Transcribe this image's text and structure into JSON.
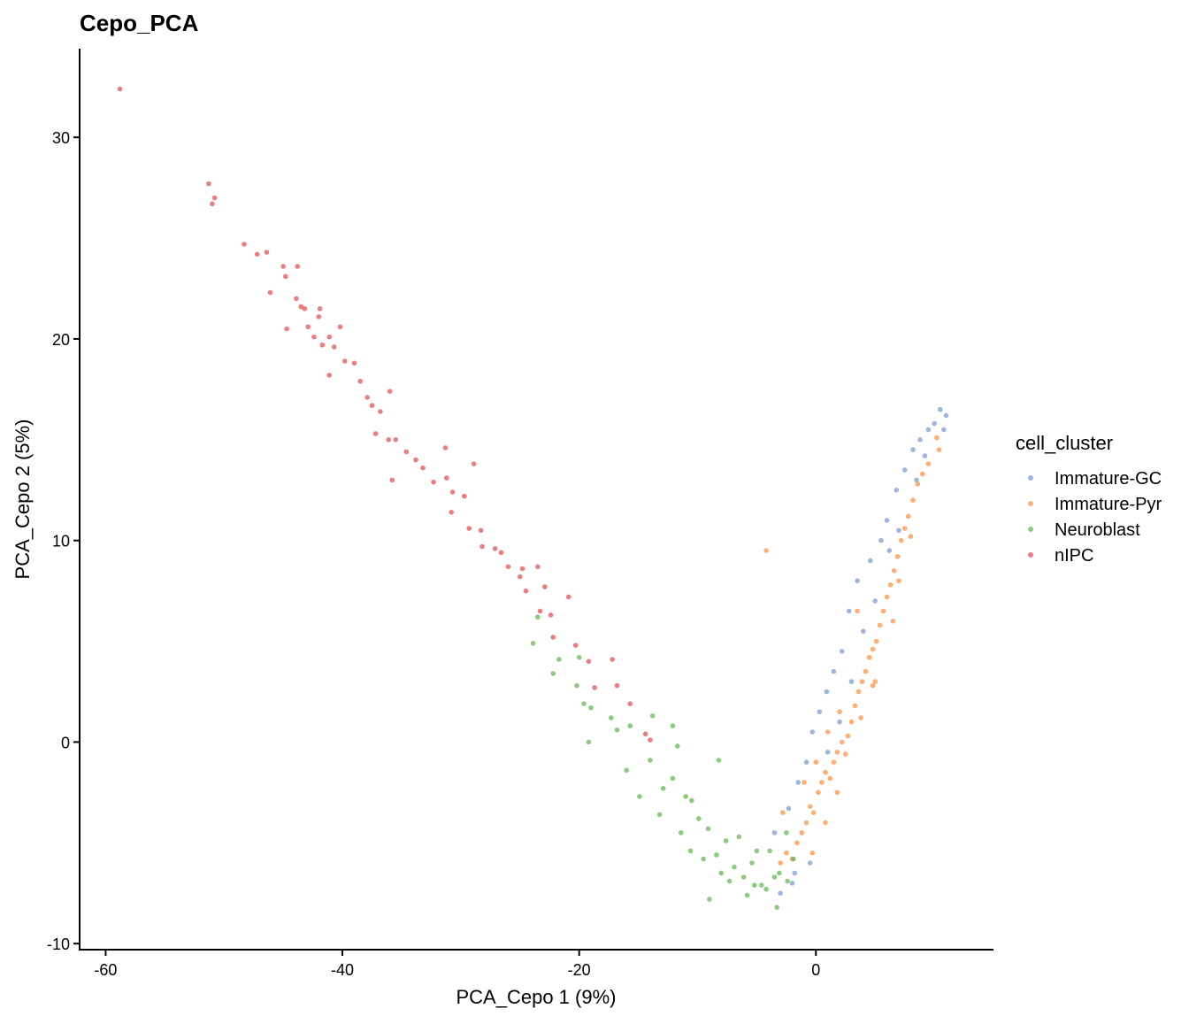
{
  "chart_data": {
    "type": "scatter",
    "title": "Cepo_PCA",
    "xlabel": "PCA_Cepo 1 (9%)",
    "ylabel": "PCA_Cepo 2 (5%)",
    "xlim": [
      -62.2,
      15.0
    ],
    "ylim": [
      -10.3,
      34.4
    ],
    "xticks": [
      -60,
      -40,
      -20,
      0
    ],
    "yticks": [
      -10,
      0,
      10,
      20,
      30
    ],
    "grid": false,
    "legend": {
      "title": "cell_cluster",
      "placement": "right"
    },
    "series": [
      {
        "name": "Immature-GC",
        "color": "#7496D2",
        "points": [
          [
            -3.5,
            -4.5
          ],
          [
            -2.3,
            -3.3
          ],
          [
            -1.5,
            -2
          ],
          [
            -0.8,
            -1
          ],
          [
            -0.3,
            0.5
          ],
          [
            0.3,
            1.5
          ],
          [
            0.9,
            2.5
          ],
          [
            1.5,
            3.5
          ],
          [
            2.2,
            4.5
          ],
          [
            2.8,
            6.5
          ],
          [
            3.5,
            8
          ],
          [
            4.6,
            9
          ],
          [
            5.5,
            10
          ],
          [
            6,
            11
          ],
          [
            6.8,
            12.5
          ],
          [
            7.5,
            13.5
          ],
          [
            8.2,
            14.5
          ],
          [
            8.8,
            15
          ],
          [
            9.5,
            15.5
          ],
          [
            10.5,
            16.5
          ],
          [
            11,
            16.2
          ],
          [
            10.8,
            15.5
          ],
          [
            -2,
            -7
          ],
          [
            -0.5,
            -6
          ],
          [
            9.2,
            14.2
          ],
          [
            8.5,
            13
          ],
          [
            7,
            10.5
          ],
          [
            5,
            7
          ],
          [
            3,
            3
          ],
          [
            1,
            -0.5
          ],
          [
            -1.8,
            -6.5
          ],
          [
            10,
            15.8
          ],
          [
            6.2,
            9.5
          ],
          [
            4,
            5.5
          ],
          [
            2,
            1
          ],
          [
            -3,
            -7.5
          ]
        ]
      },
      {
        "name": "Immature-Pyr",
        "color": "#FF8C3A",
        "points": [
          [
            -3,
            -6
          ],
          [
            -2.5,
            -5.5
          ],
          [
            -2,
            -5.8
          ],
          [
            -1.6,
            -5
          ],
          [
            -1.2,
            -4.5
          ],
          [
            -0.8,
            -4
          ],
          [
            -0.5,
            -3.2
          ],
          [
            -0.2,
            -3.5
          ],
          [
            0.2,
            -2.5
          ],
          [
            0.5,
            -2
          ],
          [
            0.8,
            -1.5
          ],
          [
            1.2,
            -1.8
          ],
          [
            1.5,
            -1
          ],
          [
            1.8,
            -0.5
          ],
          [
            2.2,
            0
          ],
          [
            2.7,
            0.3
          ],
          [
            2.5,
            -0.6
          ],
          [
            3,
            1
          ],
          [
            3.3,
            1.8
          ],
          [
            3.6,
            2.5
          ],
          [
            3.9,
            3
          ],
          [
            4.2,
            3.5
          ],
          [
            4.5,
            4.2
          ],
          [
            4.8,
            4.6
          ],
          [
            5.1,
            5
          ],
          [
            5.4,
            5.8
          ],
          [
            5.7,
            6.5
          ],
          [
            6,
            7.2
          ],
          [
            6.3,
            7.8
          ],
          [
            6.6,
            8.5
          ],
          [
            6.9,
            9.2
          ],
          [
            7.2,
            10
          ],
          [
            7.5,
            10.6
          ],
          [
            7.8,
            11.2
          ],
          [
            8.2,
            12
          ],
          [
            8.6,
            12.8
          ],
          [
            9,
            13.3
          ],
          [
            9.5,
            13.8
          ],
          [
            10.4,
            14.5
          ],
          [
            10.2,
            15.1
          ],
          [
            -4.2,
            9.5
          ],
          [
            -2.8,
            -3.5
          ],
          [
            -1,
            -2
          ],
          [
            0,
            -1
          ],
          [
            1,
            0.5
          ],
          [
            2,
            1.5
          ],
          [
            3.5,
            6.5
          ],
          [
            5,
            3
          ],
          [
            6.5,
            6
          ],
          [
            -0.3,
            -5.5
          ],
          [
            0.8,
            -4
          ],
          [
            1.8,
            -2.5
          ],
          [
            3.8,
            1.2
          ],
          [
            4.8,
            2.8
          ],
          [
            7,
            8
          ],
          [
            8,
            10.2
          ]
        ]
      },
      {
        "name": "Neuroblast",
        "color": "#5DB54B",
        "points": [
          [
            -23.9,
            4.9
          ],
          [
            -23.5,
            6.2
          ],
          [
            -21.7,
            4.1
          ],
          [
            -20.0,
            4.2
          ],
          [
            -22.2,
            3.4
          ],
          [
            -20.2,
            2.8
          ],
          [
            -19.6,
            1.9
          ],
          [
            -19.0,
            1.7
          ],
          [
            -19.2,
            0.0
          ],
          [
            -17.3,
            1.2
          ],
          [
            -16.8,
            0.6
          ],
          [
            -15.7,
            0.8
          ],
          [
            -13.8,
            1.3
          ],
          [
            -14.0,
            -0.9
          ],
          [
            -16.0,
            -1.4
          ],
          [
            -14.9,
            -2.7
          ],
          [
            -12.9,
            -2.3
          ],
          [
            -11.7,
            -0.2
          ],
          [
            -12.1,
            -1.8
          ],
          [
            -11.0,
            -2.7
          ],
          [
            -10.5,
            -2.9
          ],
          [
            -9.9,
            -3.8
          ],
          [
            -8.2,
            -0.9
          ],
          [
            -9.1,
            -4.3
          ],
          [
            -11.4,
            -4.5
          ],
          [
            -10.6,
            -5.4
          ],
          [
            -9.5,
            -5.8
          ],
          [
            -8.4,
            -5.6
          ],
          [
            -7.6,
            -4.9
          ],
          [
            -6.9,
            -6.2
          ],
          [
            -6.1,
            -6.7
          ],
          [
            -5.4,
            -6.0
          ],
          [
            -4.6,
            -7.1
          ],
          [
            -3.9,
            -5.4
          ],
          [
            -5.8,
            -7.6
          ],
          [
            -9.0,
            -7.8
          ],
          [
            -3.3,
            -8.2
          ],
          [
            -5.0,
            -5.4
          ],
          [
            -3.1,
            -6.5
          ],
          [
            -2.5,
            -4.5
          ],
          [
            -6.5,
            -4.7
          ],
          [
            -4.2,
            -7.3
          ],
          [
            -5.2,
            -7.1
          ],
          [
            -7.3,
            -6.9
          ],
          [
            -8.0,
            -6.5
          ],
          [
            -2.4,
            -6.9
          ],
          [
            -3.5,
            -6.7
          ],
          [
            -12.1,
            0.8
          ],
          [
            -13.2,
            -3.6
          ],
          [
            -1.9,
            -5.8
          ]
        ]
      },
      {
        "name": "nIPC",
        "color": "#E3494A",
        "points": [
          [
            -58.8,
            32.4
          ],
          [
            -51.3,
            27.7
          ],
          [
            -51.0,
            26.7
          ],
          [
            -50.8,
            27.0
          ],
          [
            -48.3,
            24.7
          ],
          [
            -47.2,
            24.2
          ],
          [
            -46.4,
            24.3
          ],
          [
            -46.1,
            22.3
          ],
          [
            -45.0,
            23.6
          ],
          [
            -44.8,
            23.1
          ],
          [
            -43.8,
            23.6
          ],
          [
            -44.7,
            20.5
          ],
          [
            -43.9,
            22.0
          ],
          [
            -43.5,
            21.6
          ],
          [
            -43.2,
            21.5
          ],
          [
            -41.9,
            21.5
          ],
          [
            -42.0,
            21.1
          ],
          [
            -42.9,
            20.6
          ],
          [
            -42.4,
            20.1
          ],
          [
            -41.7,
            19.7
          ],
          [
            -41.1,
            20.1
          ],
          [
            -40.7,
            19.6
          ],
          [
            -40.2,
            20.6
          ],
          [
            -41.1,
            18.2
          ],
          [
            -39.8,
            18.9
          ],
          [
            -39.0,
            18.8
          ],
          [
            -38.5,
            17.9
          ],
          [
            -37.9,
            17.1
          ],
          [
            -37.5,
            16.7
          ],
          [
            -36.8,
            16.4
          ],
          [
            -36.0,
            17.4
          ],
          [
            -37.2,
            15.3
          ],
          [
            -36.1,
            15.0
          ],
          [
            -35.8,
            13.0
          ],
          [
            -35.5,
            15.0
          ],
          [
            -34.6,
            14.4
          ],
          [
            -33.8,
            14.0
          ],
          [
            -33.2,
            13.6
          ],
          [
            -32.3,
            12.9
          ],
          [
            -31.3,
            14.6
          ],
          [
            -31.2,
            13.1
          ],
          [
            -30.7,
            12.4
          ],
          [
            -29.7,
            12.2
          ],
          [
            -28.9,
            13.8
          ],
          [
            -30.8,
            11.4
          ],
          [
            -29.3,
            10.6
          ],
          [
            -28.2,
            9.7
          ],
          [
            -27.1,
            9.6
          ],
          [
            -26.0,
            8.7
          ],
          [
            -24.8,
            8.6
          ],
          [
            -23.5,
            8.7
          ],
          [
            -24.5,
            7.5
          ],
          [
            -23.3,
            6.5
          ],
          [
            -22.4,
            6.3
          ],
          [
            -20.9,
            7.2
          ],
          [
            -22.2,
            5.2
          ],
          [
            -20.3,
            4.8
          ],
          [
            -19.2,
            4.0
          ],
          [
            -17.2,
            4.1
          ],
          [
            -18.7,
            2.7
          ],
          [
            -16.8,
            2.8
          ],
          [
            -15.7,
            1.9
          ],
          [
            -14.4,
            0.4
          ],
          [
            -14.0,
            0.1
          ],
          [
            -25.0,
            8.2
          ],
          [
            -22.9,
            7.7
          ],
          [
            -26.6,
            9.4
          ],
          [
            -28.3,
            10.5
          ]
        ]
      }
    ]
  }
}
